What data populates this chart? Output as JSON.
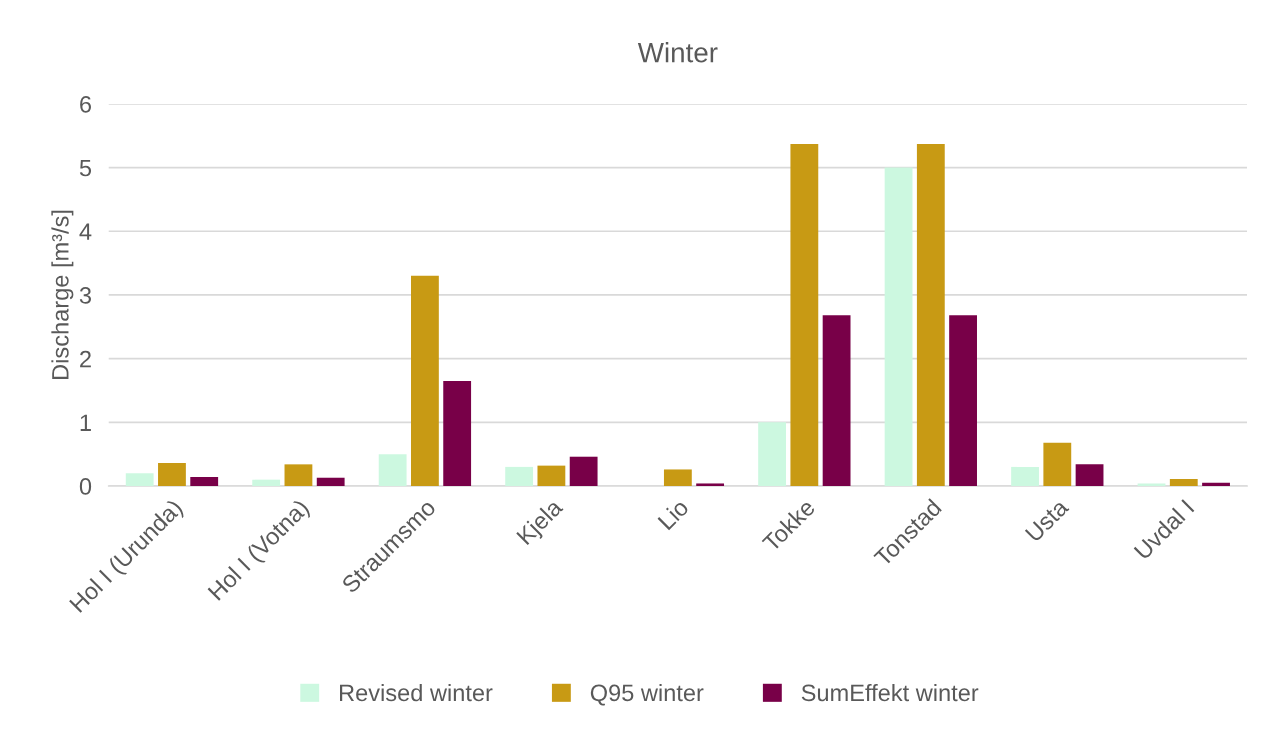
{
  "chart_data": {
    "type": "bar",
    "title": "Winter",
    "ylabel": "Discharge [m³/s]",
    "categories": [
      "Hol I (Urunda)",
      "Hol I (Votna)",
      "Straumsmo",
      "Kjela",
      "Lio",
      "Tokke",
      "Tonstad",
      "Usta",
      "Uvdal I"
    ],
    "series": [
      {
        "name": "Revised winter",
        "color": "#ccf8e0",
        "values": [
          0.2,
          0.1,
          0.5,
          0.3,
          0,
          1.0,
          5.0,
          0.3,
          0.04
        ]
      },
      {
        "name": "Q95 winter",
        "color": "#c89a14",
        "values": [
          0.36,
          0.34,
          3.3,
          0.32,
          0.26,
          5.37,
          5.37,
          0.68,
          0.11
        ]
      },
      {
        "name": "SumEffekt winter",
        "color": "#780048",
        "values": [
          0.14,
          0.13,
          1.65,
          0.46,
          0.04,
          2.68,
          2.68,
          0.34,
          0.05
        ]
      }
    ],
    "ylim": [
      0,
      6
    ],
    "yticks": [
      0,
      1,
      2,
      3,
      4,
      5,
      6
    ],
    "grid": "y",
    "legend": "bottom"
  }
}
